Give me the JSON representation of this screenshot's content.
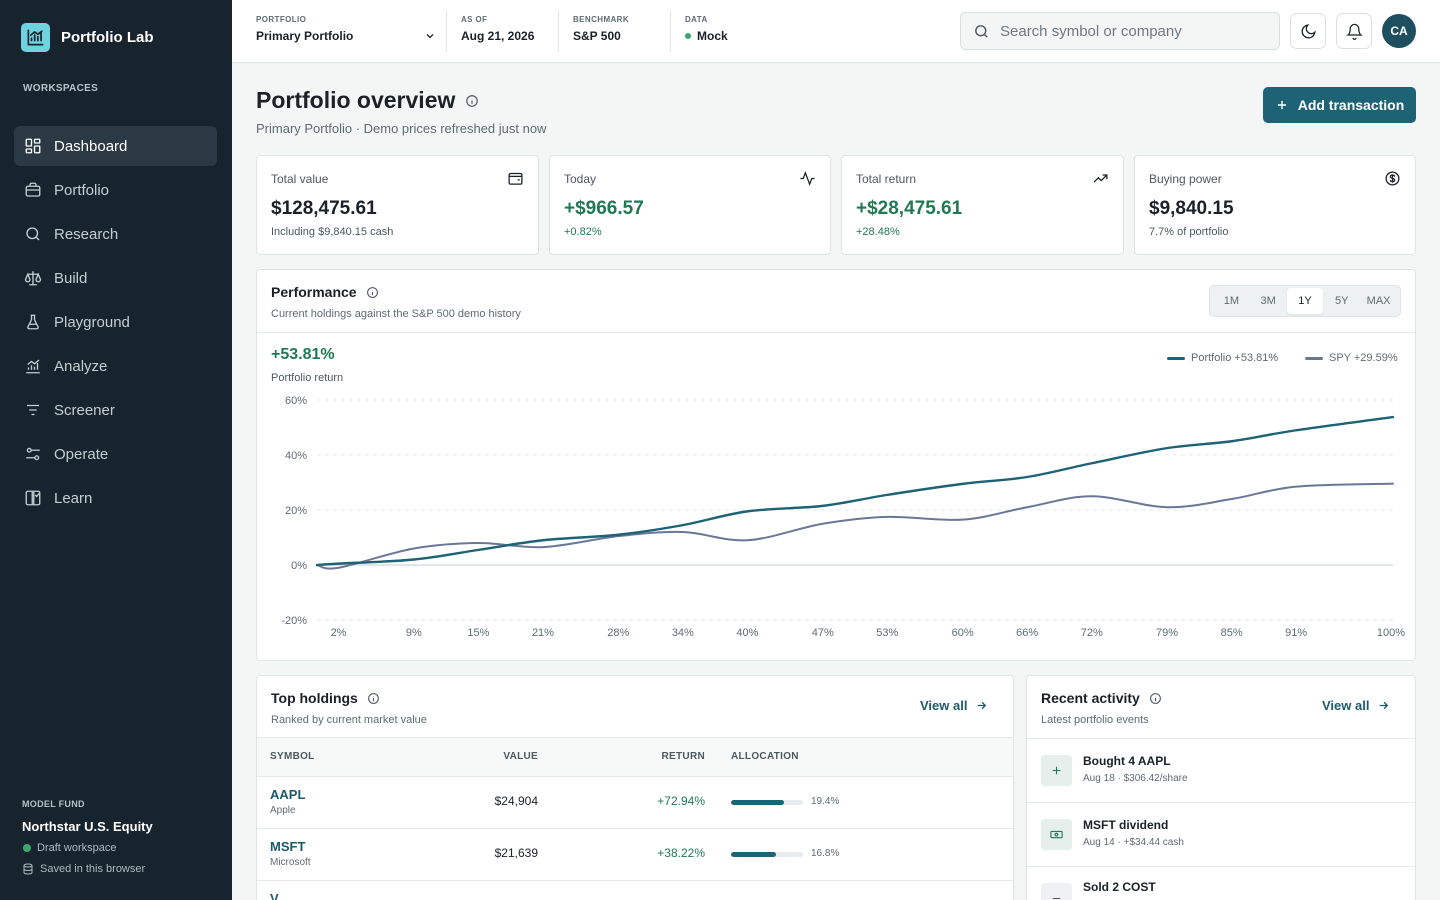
{
  "app": {
    "name": "Portfolio Lab"
  },
  "sidebar": {
    "section_label": "WORKSPACES",
    "items": [
      {
        "label": "Dashboard",
        "icon": "dashboard-icon",
        "active": true
      },
      {
        "label": "Portfolio",
        "icon": "briefcase-icon"
      },
      {
        "label": "Research",
        "icon": "search-icon"
      },
      {
        "label": "Build",
        "icon": "scale-icon"
      },
      {
        "label": "Playground",
        "icon": "flask-icon"
      },
      {
        "label": "Analyze",
        "icon": "chart-icon"
      },
      {
        "label": "Screener",
        "icon": "filter-icon"
      },
      {
        "label": "Operate",
        "icon": "sliders-icon"
      },
      {
        "label": "Learn",
        "icon": "book-icon"
      }
    ],
    "fund": {
      "label": "MODEL FUND",
      "name": "Northstar U.S. Equity",
      "status": "Draft workspace",
      "saved": "Saved in this browser"
    }
  },
  "topbar": {
    "portfolio_label": "PORTFOLIO",
    "portfolio_value": "Primary Portfolio",
    "asof_label": "AS OF",
    "asof_value": "Aug 21, 2026",
    "benchmark_label": "BENCHMARK",
    "benchmark_value": "S&P 500",
    "data_label": "DATA",
    "data_value": "Mock",
    "search_placeholder": "Search symbol or company",
    "avatar": "CA"
  },
  "header": {
    "title": "Portfolio overview",
    "subtitle": "Primary Portfolio · Demo prices refreshed just now",
    "add_button": "Add transaction"
  },
  "stats": [
    {
      "label": "Total value",
      "value": "$128,475.61",
      "sub": "Including $9,840.15 cash",
      "icon": "wallet-icon",
      "positive": false
    },
    {
      "label": "Today",
      "value": "+$966.57",
      "sub": "+0.82%",
      "icon": "activity-icon",
      "positive": true
    },
    {
      "label": "Total return",
      "value": "+$28,475.61",
      "sub": "+28.48%",
      "icon": "trending-up-icon",
      "positive": true
    },
    {
      "label": "Buying power",
      "value": "$9,840.15",
      "sub": "7.7% of portfolio",
      "icon": "dollar-circle-icon",
      "positive": false
    }
  ],
  "performance": {
    "title": "Performance",
    "subtitle": "Current holdings against the S&P 500 demo history",
    "ranges": [
      "1M",
      "3M",
      "1Y",
      "5Y",
      "MAX"
    ],
    "active_range": "1Y",
    "headline_value": "+53.81%",
    "headline_label": "Portfolio return",
    "legend": [
      "Portfolio +53.81%",
      "SPY +29.59%"
    ],
    "colors": {
      "portfolio": "#1d6375",
      "spy": "#6b7797"
    }
  },
  "chart_data": {
    "type": "line",
    "x": [
      0,
      2,
      9,
      15,
      21,
      28,
      34,
      40,
      47,
      53,
      60,
      66,
      72,
      79,
      85,
      91,
      100
    ],
    "x_tick_labels": [
      "2%",
      "9%",
      "15%",
      "21%",
      "28%",
      "34%",
      "40%",
      "47%",
      "53%",
      "60%",
      "66%",
      "72%",
      "79%",
      "85%",
      "91%",
      "100%"
    ],
    "y_tick_labels": [
      "60%",
      "40%",
      "20%",
      "0%",
      "-20%"
    ],
    "ylim": [
      -20,
      60
    ],
    "xlim": [
      0,
      100
    ],
    "grid": true,
    "legend_position": "top-right",
    "series": [
      {
        "name": "Portfolio",
        "values": [
          0,
          0.5,
          2,
          5.5,
          9,
          11,
          14.5,
          19.5,
          21.5,
          25.5,
          29.5,
          32,
          37,
          42.5,
          45,
          49,
          53.8
        ]
      },
      {
        "name": "SPY",
        "values": [
          0,
          -1,
          6,
          8,
          6.5,
          10.5,
          12,
          9,
          15,
          17.5,
          16.5,
          21,
          25,
          21,
          24,
          28.5,
          29.6
        ]
      }
    ]
  },
  "holdings": {
    "title": "Top holdings",
    "subtitle": "Ranked by current market value",
    "view_all": "View all",
    "columns": [
      "SYMBOL",
      "VALUE",
      "RETURN",
      "ALLOCATION"
    ],
    "rows": [
      {
        "symbol": "AAPL",
        "name": "Apple",
        "value": "$24,904",
        "return": "+72.94%",
        "allocation": "19.4%",
        "alloc_fraction": 0.194
      },
      {
        "symbol": "MSFT",
        "name": "Microsoft",
        "value": "$21,639",
        "return": "+38.22%",
        "allocation": "16.8%",
        "alloc_fraction": 0.168
      },
      {
        "symbol": "V",
        "name": "",
        "value": "",
        "return": "",
        "allocation": ""
      }
    ]
  },
  "activity": {
    "title": "Recent activity",
    "subtitle": "Latest portfolio events",
    "view_all": "View all",
    "items": [
      {
        "title": "Bought 4 AAPL",
        "sub": "Aug 18 · $306.42/share",
        "icon": "plus-icon"
      },
      {
        "title": "MSFT dividend",
        "sub": "Aug 14 · +$34.44 cash",
        "icon": "cash-icon"
      },
      {
        "title": "Sold 2 COST",
        "sub": "",
        "icon": "minus-icon"
      }
    ]
  }
}
